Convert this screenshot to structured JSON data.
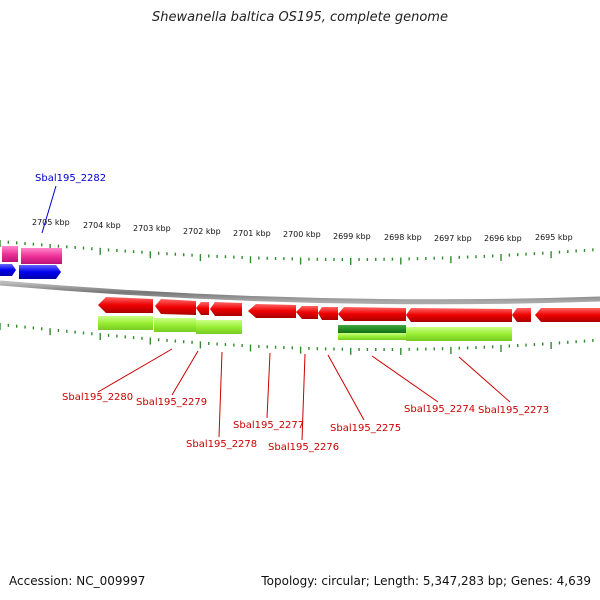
{
  "title": "Shewanella baltica OS195, complete genome",
  "footer": {
    "accession": "Accession: NC_009997",
    "summary": "Topology: circular; Length: 5,347,283 bp; Genes: 4,639"
  },
  "kbp_labels": [
    "2705 kbp",
    "2704 kbp",
    "2703 kbp",
    "2702 kbp",
    "2701 kbp",
    "2700 kbp",
    "2699 kbp",
    "2698 kbp",
    "2697 kbp",
    "2696 kbp",
    "2695 kbp"
  ],
  "gene_labels": {
    "g2282": "Sbal195_2282",
    "g2280": "Sbal195_2280",
    "g2279": "Sbal195_2279",
    "g2278": "Sbal195_2278",
    "g2277": "Sbal195_2277",
    "g2276": "Sbal195_2276",
    "g2275": "Sbal195_2275",
    "g2274": "Sbal195_2274",
    "g2273": "Sbal195_2273"
  },
  "colors": {
    "backbone": "#888888",
    "tick": "#2e8b2e",
    "gene_red": "#ee0000",
    "gene_blue": "#0000ee",
    "gene_pink": "#ee3399",
    "feature_lime": "#99ee33",
    "feature_green": "#228822",
    "label_red": "#cc0000",
    "label_blue": "#0000cc"
  }
}
